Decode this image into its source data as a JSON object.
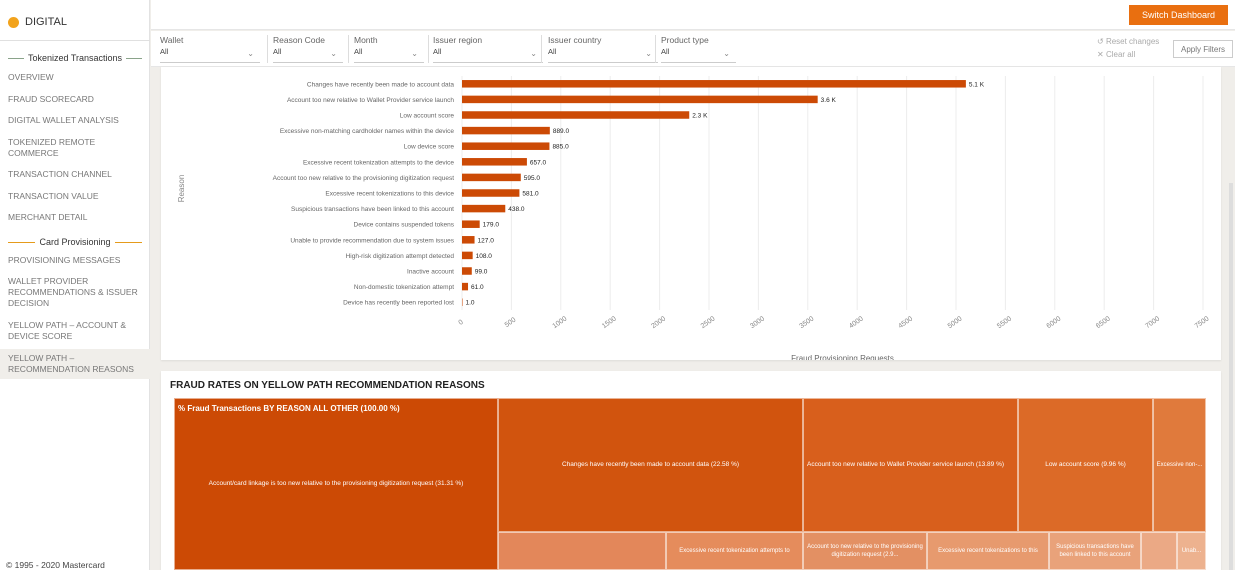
{
  "brand": {
    "name": "DIGITAL"
  },
  "sidebar": {
    "sections": [
      {
        "label": "Tokenized Transactions"
      },
      {
        "label": "Card Provisioning"
      }
    ],
    "items": [
      {
        "label": "OVERVIEW"
      },
      {
        "label": "FRAUD SCORECARD"
      },
      {
        "label": "DIGITAL WALLET ANALYSIS"
      },
      {
        "label": "TOKENIZED REMOTE COMMERCE"
      },
      {
        "label": "TRANSACTION CHANNEL"
      },
      {
        "label": "TRANSACTION VALUE"
      },
      {
        "label": "MERCHANT DETAIL"
      },
      {
        "label": "PROVISIONING MESSAGES"
      },
      {
        "label": "WALLET PROVIDER RECOMMENDATIONS & ISSUER DECISION"
      },
      {
        "label": "YELLOW PATH – ACCOUNT & DEVICE SCORE"
      },
      {
        "label": "YELLOW PATH – RECOMMENDATION REASONS"
      }
    ],
    "active_item": "YELLOW PATH – RECOMMENDATION REASONS"
  },
  "footer": {
    "copyright": "© 1995 - 2020 Mastercard"
  },
  "topbar": {
    "switch_label": "Switch Dashboard"
  },
  "filters": [
    {
      "label": "Wallet",
      "value": "All"
    },
    {
      "label": "Reason Code",
      "value": "All"
    },
    {
      "label": "Month",
      "value": "All"
    },
    {
      "label": "Issuer region",
      "value": "All"
    },
    {
      "label": "Issuer country",
      "value": "All"
    },
    {
      "label": "Product type",
      "value": "All"
    }
  ],
  "filter_actions": {
    "reset": "Reset changes",
    "clear": "Clear all",
    "apply": "Apply Filters"
  },
  "colors": {
    "accent": "#e96f10",
    "bar": "#cc4a05"
  },
  "chart_data": {
    "type": "bar",
    "orientation": "horizontal",
    "xlabel": "Fraud Provisioning Requests",
    "ylabel": "Reason",
    "xlim": [
      0,
      7500
    ],
    "xticks": [
      "0",
      "500",
      "1000",
      "1500",
      "2000",
      "2500",
      "3000",
      "3500",
      "4000",
      "4500",
      "5000",
      "5500",
      "6000",
      "6500",
      "7000",
      "7500"
    ],
    "grid": true,
    "categories": [
      "Changes have recently been made to account data",
      "Account too new relative to Wallet Provider service launch",
      "Low account score",
      "Excessive non-matching cardholder names within the device",
      "Low device score",
      "Excessive recent tokenization attempts to the device",
      "Account too new relative to the provisioning digitization request",
      "Excessive recent tokenizations to this device",
      "Suspicious transactions have been linked to this account",
      "Device contains suspended tokens",
      "Unable to provide recommendation due to system issues",
      "High-risk digitization attempt detected",
      "Inactive account",
      "Non-domestic tokenization attempt",
      "Device has recently been reported lost"
    ],
    "values": [
      5100,
      3600,
      2300,
      889,
      885,
      657,
      595,
      581,
      438,
      179,
      127,
      108,
      99,
      61,
      1
    ],
    "data_labels": [
      "5.1 K",
      "3.6 K",
      "2.3 K",
      "889.0",
      "885.0",
      "657.0",
      "595.0",
      "581.0",
      "438.0",
      "179.0",
      "127.0",
      "108.0",
      "99.0",
      "61.0",
      "1.0"
    ]
  },
  "treemap": {
    "title": "FRAUD RATES ON YELLOW PATH RECOMMENDATION REASONS",
    "header": "% Fraud Transactions BY REASON ALL OTHER (100.00 %)",
    "tiles": [
      {
        "label": "Account/card linkage is too new relative to the provisioning digitization request (31.31 %)",
        "color": "#cc4a05"
      },
      {
        "label": "Changes have recently been made to account data (22.58 %)",
        "color": "#d1540e"
      },
      {
        "label": "Account too new relative to Wallet Provider service launch (13.89 %)",
        "color": "#d85f1c"
      },
      {
        "label": "Low account score (9.96 %)",
        "color": "#dc6a27"
      },
      {
        "label": "Excessive non-...",
        "color": "#e07a3c"
      },
      {
        "label": "",
        "color": "#e3875a"
      },
      {
        "label": "Excessive recent tokenization attempts to",
        "color": "#e58c5c"
      },
      {
        "label": "Account too new relative to the provisioning digitization request (2.9...",
        "color": "#e39063"
      },
      {
        "label": "Excessive recent tokenizations to this",
        "color": "#e79a6e"
      },
      {
        "label": "Suspicious transactions have been linked to this account",
        "color": "#e9a27a"
      },
      {
        "label": "",
        "color": "#eba985"
      },
      {
        "label": "Unab...",
        "color": "#edb28f"
      }
    ]
  }
}
